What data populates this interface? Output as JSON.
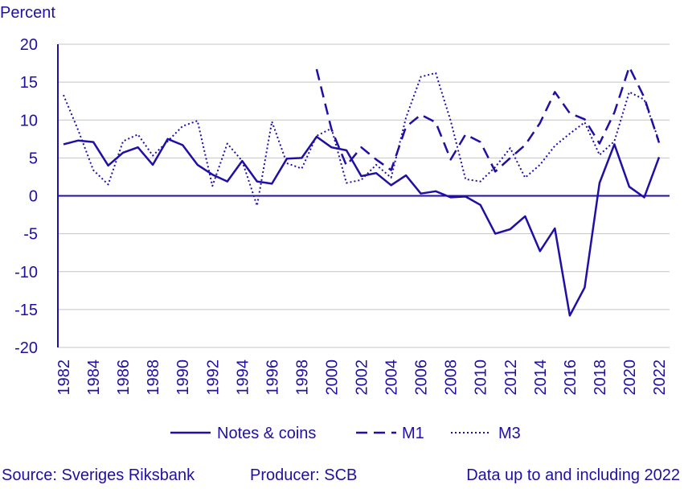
{
  "chart_data": {
    "type": "line",
    "ylabel": "Percent",
    "ylim": [
      -20,
      20
    ],
    "yticks": [
      20,
      15,
      10,
      5,
      0,
      -5,
      -10,
      -15,
      -20
    ],
    "xticks": [
      1982,
      1984,
      1986,
      1988,
      1990,
      1992,
      1994,
      1996,
      1998,
      2000,
      2002,
      2004,
      2006,
      2008,
      2010,
      2012,
      2014,
      2016,
      2018,
      2020,
      2022
    ],
    "xlim": [
      1982,
      2022
    ],
    "colors": {
      "series": "#1f0fa6",
      "grid": "#c4c4c4",
      "axis": "#1f0fa6",
      "text": "#1f0fa6"
    },
    "series": [
      {
        "name": "Notes & coins",
        "style": "solid",
        "x": [
          1982,
          1983,
          1984,
          1985,
          1986,
          1987,
          1988,
          1989,
          1990,
          1991,
          1992,
          1993,
          1994,
          1995,
          1996,
          1997,
          1998,
          1999,
          2000,
          2001,
          2002,
          2003,
          2004,
          2005,
          2006,
          2007,
          2008,
          2009,
          2010,
          2011,
          2012,
          2013,
          2014,
          2015,
          2016,
          2017,
          2018,
          2019,
          2020,
          2021,
          2022
        ],
        "values": [
          6.8,
          7.3,
          7.1,
          4.0,
          5.7,
          6.4,
          4.1,
          7.5,
          6.7,
          4.1,
          2.8,
          1.9,
          4.6,
          1.9,
          1.6,
          4.9,
          5.0,
          7.8,
          6.4,
          6.0,
          2.6,
          3.0,
          1.4,
          2.7,
          0.3,
          0.6,
          -0.2,
          -0.1,
          -1.2,
          -5.0,
          -4.4,
          -2.7,
          -7.3,
          -4.3,
          -15.8,
          -12.1,
          1.7,
          6.8,
          1.2,
          -0.2,
          5.1
        ]
      },
      {
        "name": "M1",
        "style": "dashed",
        "x": [
          1999,
          2000,
          2001,
          2002,
          2003,
          2004,
          2005,
          2006,
          2007,
          2008,
          2009,
          2010,
          2011,
          2012,
          2013,
          2014,
          2015,
          2016,
          2017,
          2018,
          2019,
          2020,
          2021,
          2022
        ],
        "values": [
          16.7,
          8.8,
          4.0,
          6.4,
          4.8,
          3.4,
          9.1,
          10.7,
          9.7,
          4.8,
          8.1,
          7.1,
          3.2,
          5.0,
          6.7,
          9.6,
          13.7,
          10.9,
          10.1,
          6.9,
          11.0,
          17.0,
          13.0,
          7.0
        ]
      },
      {
        "name": "M3",
        "style": "dotted",
        "x": [
          1982,
          1983,
          1984,
          1985,
          1986,
          1987,
          1988,
          1989,
          1990,
          1991,
          1992,
          1993,
          1994,
          1995,
          1996,
          1997,
          1998,
          1999,
          2000,
          2001,
          2002,
          2003,
          2004,
          2005,
          2006,
          2007,
          2008,
          2009,
          2010,
          2011,
          2012,
          2013,
          2014,
          2015,
          2016,
          2017,
          2018,
          2019,
          2020,
          2021,
          2022
        ],
        "values": [
          13.3,
          8.6,
          3.4,
          1.5,
          7.2,
          8.1,
          5.3,
          7.2,
          9.2,
          9.9,
          1.3,
          6.9,
          4.6,
          -1.3,
          9.8,
          4.3,
          3.6,
          7.9,
          8.9,
          1.7,
          2.1,
          4.1,
          2.4,
          10.3,
          15.7,
          16.2,
          9.9,
          2.2,
          1.9,
          3.8,
          6.3,
          2.4,
          4.1,
          6.6,
          8.2,
          9.7,
          5.4,
          7.2,
          13.7,
          12.7,
          7.2
        ]
      }
    ]
  },
  "source": "Source: Sveriges Riksbank",
  "producer": "Producer: SCB",
  "data_note": "Data up to and including 2022"
}
